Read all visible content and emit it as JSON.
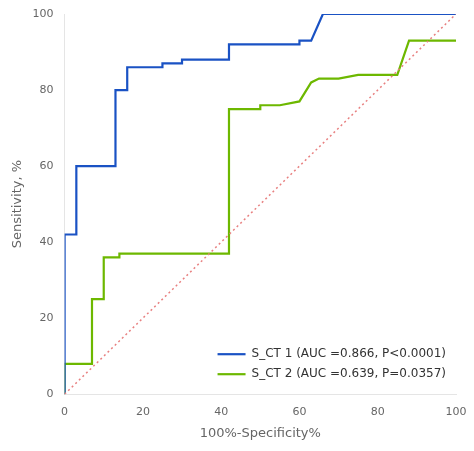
{
  "chart_data": {
    "type": "line",
    "xlabel": "100%-Specificity%",
    "ylabel": "Sensitivity, %",
    "xlim": [
      0,
      100
    ],
    "ylim": [
      0,
      100
    ],
    "xticks": [
      0,
      20,
      40,
      60,
      80,
      100
    ],
    "yticks": [
      0,
      20,
      40,
      60,
      80,
      100
    ],
    "grid": false,
    "legend": "lower right",
    "series": [
      {
        "color": "#e88080",
        "line_style": "dotted",
        "x": [
          0,
          100
        ],
        "values": [
          0,
          100
        ]
      },
      {
        "name": "S_CT 1 (AUC =0.866, P<0.0001)",
        "color": "#1a52c4",
        "line_style": "solid",
        "x": [
          0,
          0,
          3,
          3,
          7,
          7,
          13,
          13,
          16,
          16,
          25,
          25,
          30,
          30,
          42,
          42,
          50,
          55,
          60,
          60,
          63,
          66,
          100,
          100
        ],
        "values": [
          0,
          42,
          42,
          60,
          60,
          60,
          60,
          80,
          80,
          86,
          86,
          87,
          87,
          88,
          88,
          92,
          92,
          92,
          92,
          93,
          93,
          100,
          100,
          100
        ]
      },
      {
        "name": "S_CT 2 (AUC =0.639, P=0.0357)",
        "color": "#6db800",
        "line_style": "solid",
        "x": [
          0,
          0,
          5,
          5,
          7,
          7,
          10,
          10,
          14,
          14,
          17,
          17,
          42,
          42,
          50,
          50,
          55,
          60,
          63,
          65,
          70,
          75,
          80,
          85,
          88,
          90,
          95,
          100
        ],
        "values": [
          0,
          8,
          8,
          8,
          8,
          25,
          25,
          36,
          36,
          37,
          37,
          37,
          37,
          75,
          75,
          76,
          76,
          77,
          82,
          83,
          83,
          84,
          84,
          84,
          93,
          93,
          93,
          93
        ]
      }
    ]
  }
}
